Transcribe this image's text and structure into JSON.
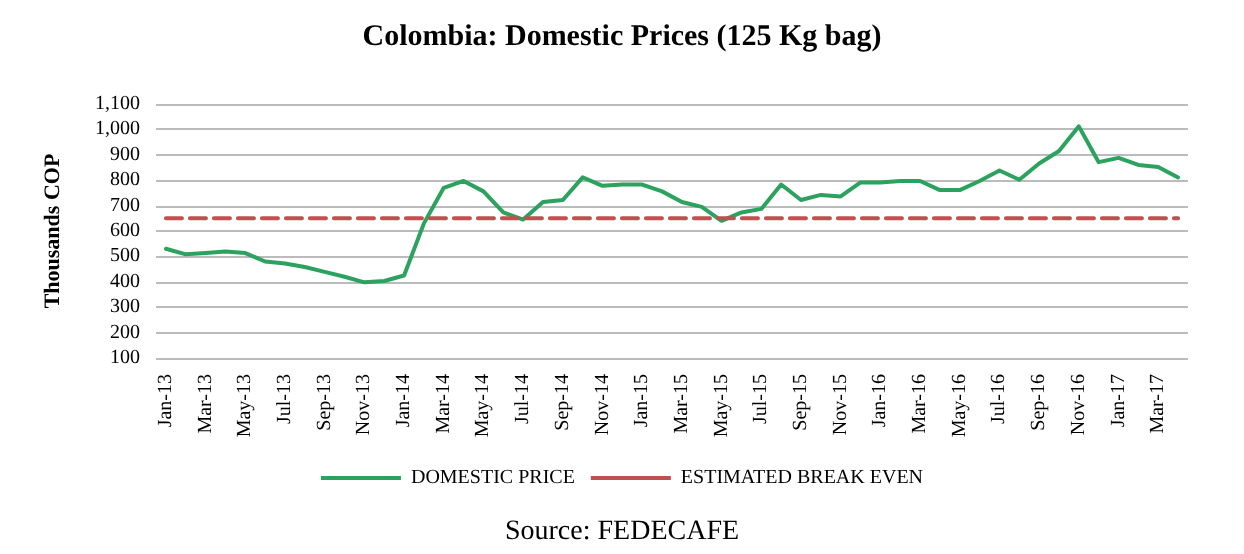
{
  "chart_data": {
    "type": "line",
    "title": "Colombia: Domestic Prices (125 Kg bag)",
    "ylabel": "Thousands COP",
    "categories": [
      "Jan-13",
      null,
      "Mar-13",
      null,
      "May-13",
      null,
      "Jul-13",
      null,
      "Sep-13",
      null,
      "Nov-13",
      null,
      "Jan-14",
      null,
      "Mar-14",
      null,
      "May-14",
      null,
      "Jul-14",
      null,
      "Sep-14",
      null,
      "Nov-14",
      null,
      "Jan-15",
      null,
      "Mar-15",
      null,
      "May-15",
      null,
      "Jul-15",
      null,
      "Sep-15",
      null,
      "Nov-15",
      null,
      "Jan-16",
      null,
      "Mar-16",
      null,
      "May-16",
      null,
      "Jul-16",
      null,
      "Sep-16",
      null,
      "Nov-16",
      null,
      "Jan-17",
      null,
      "Mar-17",
      null
    ],
    "series": [
      {
        "name": "DOMESTIC PRICE",
        "color": "#2ca25f",
        "line_style": "solid",
        "values": [
          530,
          508,
          513,
          519,
          513,
          480,
          472,
          458,
          439,
          420,
          398,
          403,
          425,
          630,
          770,
          797,
          756,
          673,
          645,
          714,
          722,
          811,
          778,
          783,
          783,
          756,
          714,
          695,
          640,
          673,
          687,
          783,
          722,
          742,
          736,
          791,
          791,
          797,
          797,
          761,
          761,
          797,
          838,
          802,
          866,
          915,
          1012,
          871,
          888,
          860,
          852,
          811
        ]
      },
      {
        "name": "ESTIMATED BREAK EVEN",
        "color": "#c0504d",
        "line_style": "dashed",
        "values": [
          650,
          650,
          650,
          650,
          650,
          650,
          650,
          650,
          650,
          650,
          650,
          650,
          650,
          650,
          650,
          650,
          650,
          650,
          650,
          650,
          650,
          650,
          650,
          650,
          650,
          650,
          650,
          650,
          650,
          650,
          650,
          650,
          650,
          650,
          650,
          650,
          650,
          650,
          650,
          650,
          650,
          650,
          650,
          650,
          650,
          650,
          650,
          650,
          650,
          650,
          650,
          650
        ]
      }
    ],
    "ylim": [
      100,
      1100
    ],
    "yticks": [
      100,
      200,
      300,
      400,
      500,
      600,
      700,
      800,
      900,
      {
        "value": 1000,
        "label": "1,000"
      },
      {
        "value": 1100,
        "label": "1,100"
      }
    ],
    "grid": "y",
    "legend": "bottom",
    "marker": "none",
    "annotations": [
      "Source: FEDECAFE"
    ]
  }
}
